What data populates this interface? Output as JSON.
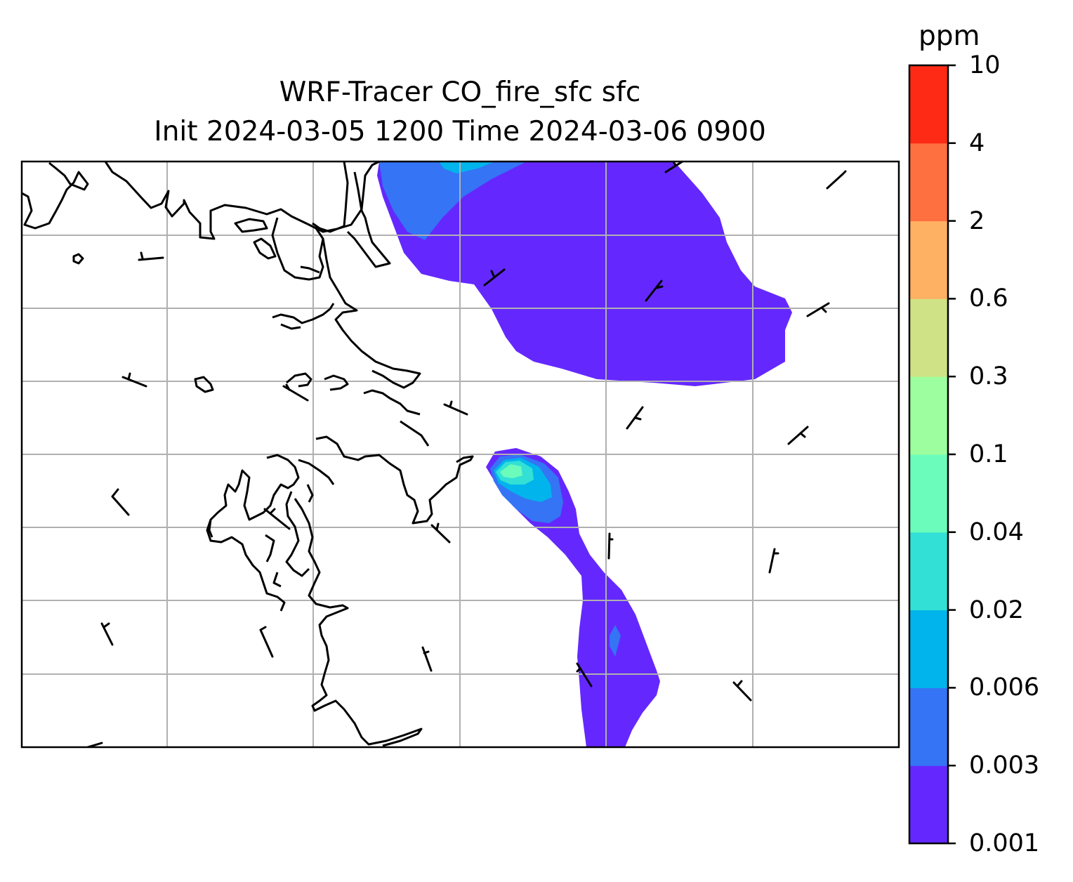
{
  "figure": {
    "title_line1": "WRF-Tracer CO_fire_sfc sfc",
    "title_line2": "Init 2024-03-05 1200 Time 2024-03-06 0900"
  },
  "map": {
    "gridlines": true,
    "coastlines": true,
    "wind_barbs": true,
    "gridline_color": "#b0b0b0"
  },
  "colorbar": {
    "unit_label": "ppm",
    "orientation": "vertical",
    "placement": "right",
    "tick_labels": [
      "0.001",
      "0.003",
      "0.006",
      "0.02",
      "0.04",
      "0.1",
      "0.3",
      "0.6",
      "2",
      "4",
      "10"
    ],
    "bins": [
      {
        "from": "0.001",
        "to": "0.003",
        "color": "#6428fe"
      },
      {
        "from": "0.003",
        "to": "0.006",
        "color": "#3474f5"
      },
      {
        "from": "0.006",
        "to": "0.02",
        "color": "#01b4ec"
      },
      {
        "from": "0.02",
        "to": "0.04",
        "color": "#32e0d5"
      },
      {
        "from": "0.04",
        "to": "0.1",
        "color": "#6bfcbc"
      },
      {
        "from": "0.1",
        "to": "0.3",
        "color": "#9dfe9f"
      },
      {
        "from": "0.3",
        "to": "0.6",
        "color": "#cfe286"
      },
      {
        "from": "0.6",
        "to": "2",
        "color": "#feb163"
      },
      {
        "from": "2",
        "to": "4",
        "color": "#fe7040"
      },
      {
        "from": "4",
        "to": "10",
        "color": "#fe2a16"
      }
    ]
  }
}
